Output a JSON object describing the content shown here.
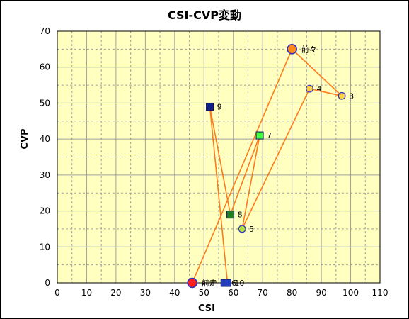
{
  "chart_data": {
    "type": "scatter",
    "title": "CSI-CVP変動",
    "xlabel": "CSI",
    "ylabel": "CVP",
    "xlim": [
      0,
      110
    ],
    "ylim": [
      0,
      70
    ],
    "x_ticks": [
      0,
      10,
      20,
      30,
      40,
      50,
      60,
      70,
      80,
      90,
      100,
      110
    ],
    "y_ticks": [
      0,
      10,
      20,
      30,
      40,
      50,
      60,
      70
    ],
    "x_minor_step": 5,
    "y_minor_step": 5,
    "grid": true,
    "legend": "none",
    "colors": {
      "plot_bg": "#ffffc0",
      "grid": "#a0a0a0",
      "line": "#ff7a1a"
    },
    "path_order": [
      "前走",
      "前々",
      "3",
      "4",
      "5",
      "7",
      "8",
      "9",
      "10"
    ],
    "points": [
      {
        "label": "前走",
        "x": 46,
        "y": 0,
        "marker": "circle-lg",
        "fill": "#ff2020",
        "stroke": "#3030c0"
      },
      {
        "label": "前々",
        "x": 80,
        "y": 65,
        "marker": "circle-lg",
        "fill": "#ff8a1a",
        "stroke": "#3030c0"
      },
      {
        "label": "3",
        "x": 97,
        "y": 52,
        "marker": "circle",
        "fill": "#ffd040",
        "stroke": "#3030c0"
      },
      {
        "label": "4",
        "x": 86,
        "y": 54,
        "marker": "circle",
        "fill": "#ffd040",
        "stroke": "#3030c0"
      },
      {
        "label": "5",
        "x": 63,
        "y": 15,
        "marker": "circle",
        "fill": "#b0e040",
        "stroke": "#3030c0"
      },
      {
        "label": "6",
        "x": 57,
        "y": 0,
        "marker": "square",
        "fill": "#2040c0",
        "stroke": "#101060"
      },
      {
        "label": "7",
        "x": 69,
        "y": 41,
        "marker": "square",
        "fill": "#40ff40",
        "stroke": "#101060"
      },
      {
        "label": "8",
        "x": 59,
        "y": 19,
        "marker": "square",
        "fill": "#208020",
        "stroke": "#101060"
      },
      {
        "label": "9",
        "x": 52,
        "y": 49,
        "marker": "square",
        "fill": "#102080",
        "stroke": "#101060"
      },
      {
        "label": "10",
        "x": 58,
        "y": 0,
        "marker": "square",
        "fill": "#2040c0",
        "stroke": "#101060"
      }
    ]
  }
}
